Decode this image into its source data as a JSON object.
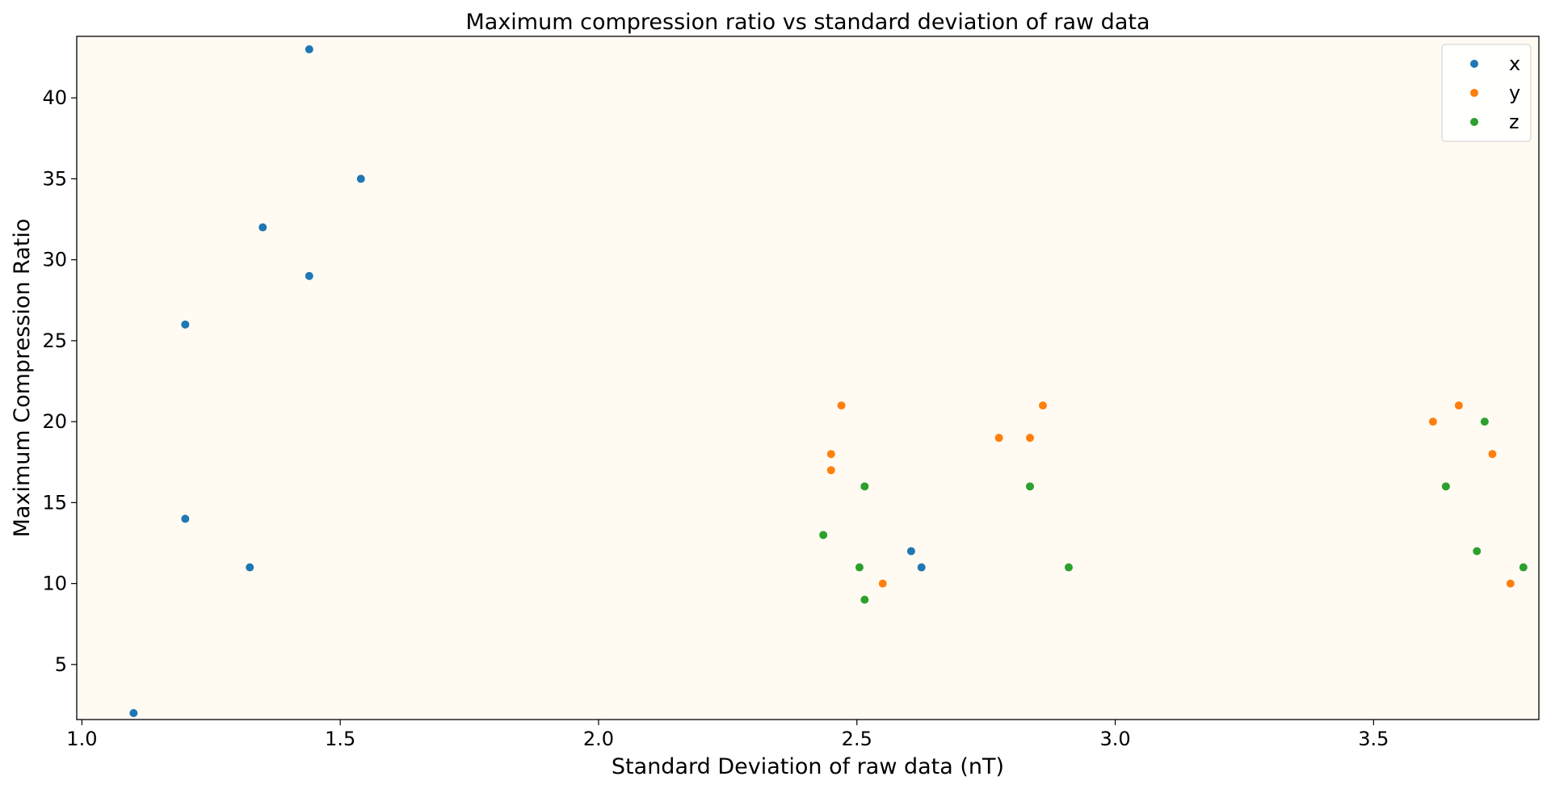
{
  "chart_data": {
    "type": "scatter",
    "title": "Maximum compression ratio vs standard deviation of raw data",
    "xlabel": "Standard Deviation of raw data (nT)",
    "ylabel": "Maximum Compression Ratio",
    "xlim": [
      0.99,
      3.82
    ],
    "ylim": [
      1.6,
      43.8
    ],
    "xticks": [
      1.0,
      1.5,
      2.0,
      2.5,
      3.0,
      3.5
    ],
    "xtick_labels": [
      "1.0",
      "1.5",
      "2.0",
      "2.5",
      "3.0",
      "3.5"
    ],
    "yticks": [
      5,
      10,
      15,
      20,
      25,
      30,
      35,
      40
    ],
    "ytick_labels": [
      "5",
      "10",
      "15",
      "20",
      "25",
      "30",
      "35",
      "40"
    ],
    "grid": false,
    "legend_position": "top-right",
    "background_color": "#fffbf3",
    "series": [
      {
        "name": "x",
        "color": "#1f77b4",
        "points": [
          [
            1.1,
            2
          ],
          [
            1.2,
            26
          ],
          [
            1.2,
            14
          ],
          [
            1.325,
            11
          ],
          [
            1.35,
            32
          ],
          [
            1.44,
            43
          ],
          [
            1.44,
            29
          ],
          [
            1.54,
            35
          ],
          [
            2.605,
            12
          ],
          [
            2.625,
            11
          ]
        ]
      },
      {
        "name": "y",
        "color": "#ff7f0e",
        "points": [
          [
            2.45,
            18
          ],
          [
            2.45,
            17
          ],
          [
            2.47,
            21
          ],
          [
            2.55,
            10
          ],
          [
            2.775,
            19
          ],
          [
            2.835,
            19
          ],
          [
            2.86,
            21
          ],
          [
            3.615,
            20
          ],
          [
            3.665,
            21
          ],
          [
            3.73,
            18
          ],
          [
            3.765,
            10
          ]
        ]
      },
      {
        "name": "z",
        "color": "#2ca02c",
        "points": [
          [
            2.435,
            13
          ],
          [
            2.505,
            11
          ],
          [
            2.515,
            16
          ],
          [
            2.515,
            9
          ],
          [
            2.835,
            16
          ],
          [
            2.91,
            11
          ],
          [
            3.64,
            16
          ],
          [
            3.7,
            12
          ],
          [
            3.715,
            20
          ],
          [
            3.79,
            11
          ]
        ]
      }
    ]
  }
}
